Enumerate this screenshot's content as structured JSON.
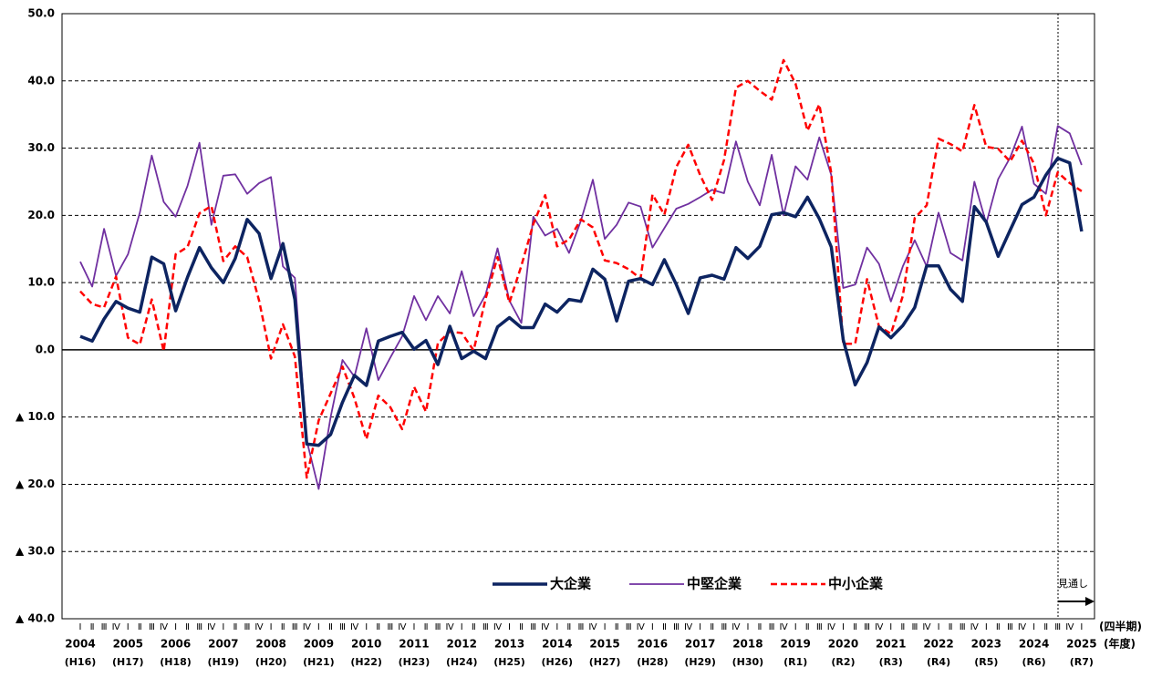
{
  "chart_data": {
    "type": "line",
    "categories": [
      "Ⅰ",
      "Ⅱ",
      "Ⅲ",
      "Ⅳ",
      "Ⅰ",
      "Ⅱ",
      "Ⅲ",
      "Ⅳ",
      "Ⅰ",
      "Ⅱ",
      "Ⅲ",
      "Ⅳ",
      "Ⅰ",
      "Ⅱ",
      "Ⅲ",
      "Ⅳ",
      "Ⅰ",
      "Ⅱ",
      "Ⅲ",
      "Ⅳ",
      "Ⅰ",
      "Ⅱ",
      "Ⅲ",
      "Ⅳ",
      "Ⅰ",
      "Ⅱ",
      "Ⅲ",
      "Ⅳ",
      "Ⅰ",
      "Ⅱ",
      "Ⅲ",
      "Ⅳ",
      "Ⅰ",
      "Ⅱ",
      "Ⅲ",
      "Ⅳ",
      "Ⅰ",
      "Ⅱ",
      "Ⅲ",
      "Ⅳ",
      "Ⅰ",
      "Ⅱ",
      "Ⅲ",
      "Ⅳ",
      "Ⅰ",
      "Ⅱ",
      "Ⅲ",
      "Ⅳ",
      "Ⅰ",
      "Ⅱ",
      "Ⅲ",
      "Ⅳ",
      "Ⅰ",
      "Ⅱ",
      "Ⅲ",
      "Ⅳ",
      "Ⅰ",
      "Ⅱ",
      "Ⅲ",
      "Ⅳ",
      "Ⅰ",
      "Ⅱ",
      "Ⅲ",
      "Ⅳ",
      "Ⅰ",
      "Ⅱ",
      "Ⅲ",
      "Ⅳ",
      "Ⅰ",
      "Ⅱ",
      "Ⅲ",
      "Ⅳ",
      "Ⅰ",
      "Ⅱ",
      "Ⅲ",
      "Ⅳ",
      "Ⅰ",
      "Ⅱ",
      "Ⅲ",
      "Ⅳ",
      "Ⅰ",
      "Ⅱ",
      "Ⅲ",
      "Ⅳ",
      "Ⅰ"
    ],
    "years": [
      "2004",
      "2005",
      "2006",
      "2007",
      "2008",
      "2009",
      "2010",
      "2011",
      "2012",
      "2013",
      "2014",
      "2015",
      "2016",
      "2017",
      "2018",
      "2019",
      "2020",
      "2021",
      "2022",
      "2023",
      "2024",
      "2025"
    ],
    "eras": [
      "(H16)",
      "(H17)",
      "(H18)",
      "(H19)",
      "(H20)",
      "(H21)",
      "(H22)",
      "(H23)",
      "(H24)",
      "(H25)",
      "(H26)",
      "(H27)",
      "(H28)",
      "(H29)",
      "(H30)",
      "(R1)",
      "(R2)",
      "(R3)",
      "(R4)",
      "(R5)",
      "(R6)",
      "(R7)"
    ],
    "quarter_axis_label": "(四半期)",
    "year_axis_label": "(年度)",
    "forecast_label": "見通し",
    "ylim": [
      -40,
      50
    ],
    "yticks": [
      {
        "value": -40,
        "label": "▲ 40.0"
      },
      {
        "value": -30,
        "label": "▲ 30.0"
      },
      {
        "value": -20,
        "label": "▲ 20.0"
      },
      {
        "value": -10,
        "label": "▲ 10.0"
      },
      {
        "value": 0,
        "label": "0.0"
      },
      {
        "value": 10,
        "label": "10.0"
      },
      {
        "value": 20,
        "label": "20.0"
      },
      {
        "value": 30,
        "label": "30.0"
      },
      {
        "value": 40,
        "label": "40.0"
      },
      {
        "value": 50,
        "label": "50.0"
      }
    ],
    "grid": true,
    "series": [
      {
        "name": "大企業",
        "color": "#0d2461",
        "values": [
          2.0,
          1.3,
          4.6,
          7.2,
          6.2,
          5.6,
          13.8,
          12.8,
          5.8,
          10.8,
          15.2,
          12.2,
          10.0,
          13.6,
          19.4,
          17.3,
          10.6,
          15.8,
          7.5,
          -14.0,
          -14.2,
          -12.6,
          -7.8,
          -3.8,
          -5.3,
          1.3,
          2.0,
          2.6,
          0.1,
          1.4,
          -2.2,
          3.5,
          -1.3,
          -0.2,
          -1.3,
          3.4,
          4.8,
          3.3,
          3.3,
          6.8,
          5.6,
          7.5,
          7.2,
          12.0,
          10.5,
          4.3,
          10.2,
          10.6,
          9.7,
          13.4,
          9.7,
          5.4,
          10.7,
          11.1,
          10.5,
          15.2,
          13.6,
          15.4,
          20.1,
          20.4,
          19.8,
          22.7,
          19.5,
          15.3,
          1.5,
          -5.2,
          -1.9,
          3.4,
          1.8,
          3.6,
          6.3,
          12.5,
          12.5,
          9.0,
          7.2,
          21.3,
          19.0,
          13.9,
          17.8,
          21.6,
          22.7,
          26.0,
          28.5,
          27.8,
          17.6
        ]
      },
      {
        "name": "中堅企業",
        "color": "#7030a0",
        "values": [
          13.1,
          9.4,
          18.0,
          11.0,
          14.2,
          20.4,
          28.9,
          22.0,
          19.8,
          24.4,
          30.8,
          18.6,
          25.9,
          26.1,
          23.2,
          24.8,
          25.7,
          12.4,
          10.7,
          -13.5,
          -20.7,
          -10.0,
          -1.5,
          -4.0,
          3.2,
          -4.5,
          -1.2,
          2.0,
          8.0,
          4.4,
          8.0,
          5.4,
          11.7,
          5.0,
          8.2,
          15.1,
          7.3,
          4.0,
          19.8,
          17.0,
          18.0,
          14.4,
          19.2,
          25.3,
          16.5,
          18.6,
          21.9,
          21.3,
          15.2,
          18.1,
          21.0,
          21.7,
          22.7,
          23.8,
          23.3,
          31.0,
          25.0,
          21.5,
          29.0,
          20.0,
          27.3,
          25.3,
          31.6,
          26.0,
          9.2,
          9.7,
          15.2,
          12.8,
          7.2,
          12.4,
          16.3,
          12.4,
          20.4,
          14.4,
          13.3,
          25.0,
          18.8,
          25.4,
          28.6,
          33.2,
          24.7,
          23.2,
          33.3,
          32.2,
          27.5
        ]
      },
      {
        "name": "中小企業",
        "color": "#ff0000",
        "values": [
          8.7,
          6.8,
          6.3,
          10.9,
          1.8,
          0.8,
          7.5,
          -0.2,
          14.2,
          15.3,
          20.3,
          21.4,
          13.2,
          15.4,
          13.8,
          7.3,
          -1.3,
          3.8,
          -1.0,
          -19.0,
          -10.5,
          -6.5,
          -2.5,
          -7.2,
          -13.3,
          -6.8,
          -8.5,
          -11.8,
          -5.5,
          -9.2,
          1.0,
          2.7,
          2.5,
          -0.1,
          7.6,
          13.8,
          7.0,
          12.5,
          18.7,
          23.0,
          15.4,
          16.4,
          19.4,
          18.2,
          13.3,
          12.9,
          12.0,
          10.6,
          23.1,
          20.1,
          27.2,
          30.5,
          26.0,
          22.3,
          28.2,
          39.0,
          40.0,
          38.5,
          37.2,
          43.1,
          39.6,
          32.6,
          36.5,
          26.3,
          0.9,
          0.9,
          10.5,
          3.5,
          2.4,
          8.0,
          19.6,
          21.5,
          31.4,
          30.6,
          29.5,
          36.4,
          30.2,
          29.9,
          28.0,
          31.1,
          27.7,
          20.0,
          26.4,
          24.8,
          23.6
        ]
      }
    ]
  }
}
